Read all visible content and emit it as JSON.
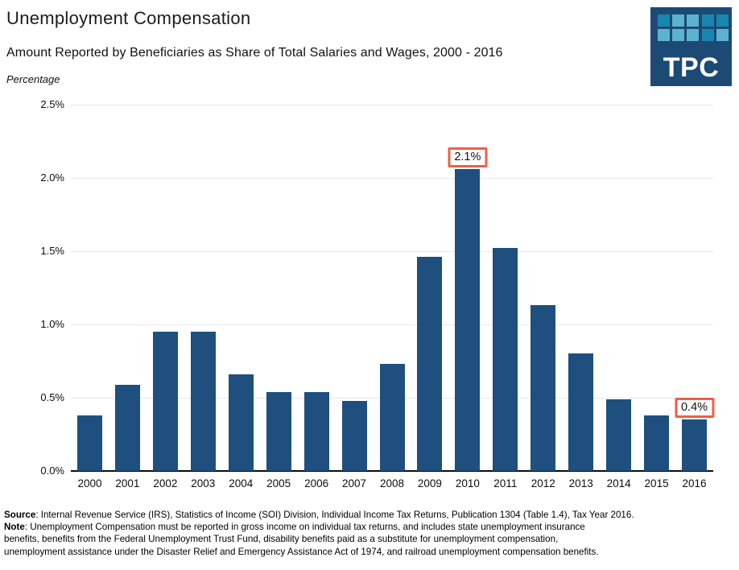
{
  "header": {
    "title": "Unemployment Compensation",
    "subtitle": "Amount Reported by Beneficiaries as Share of Total Salaries and Wages, 2000 - 2016",
    "axis_unit_label": "Percentage"
  },
  "logo": {
    "text": "TPC",
    "bg_color": "#1c4a74",
    "square_colors": [
      "#1886ae",
      "#5db2d0",
      "#5db2d0",
      "#1886ae",
      "#1886ae",
      "#5db2d0",
      "#5db2d0",
      "#5db2d0",
      "#1886ae",
      "#5db2d0"
    ]
  },
  "chart_data": {
    "type": "bar",
    "title": "Unemployment Compensation",
    "subtitle": "Amount Reported by Beneficiaries as Share of Total Salaries and Wages, 2000 - 2016",
    "ylabel": "Percentage",
    "categories": [
      "2000",
      "2001",
      "2002",
      "2003",
      "2004",
      "2005",
      "2006",
      "2007",
      "2008",
      "2009",
      "2010",
      "2011",
      "2012",
      "2013",
      "2014",
      "2015",
      "2016"
    ],
    "values": [
      0.38,
      0.59,
      0.95,
      0.95,
      0.66,
      0.54,
      0.54,
      0.48,
      0.73,
      1.46,
      2.06,
      1.52,
      1.13,
      0.8,
      0.49,
      0.38,
      0.35
    ],
    "ylim": [
      0,
      2.5
    ],
    "ytick_labels": [
      "0.0%",
      "0.5%",
      "1.0%",
      "1.5%",
      "2.0%",
      "2.5%"
    ],
    "grid": true,
    "legend": "none",
    "bar_color": "#1e4f7e",
    "annotation_border_color": "#ee5f48",
    "annotations": [
      {
        "category": "2010",
        "label": "2.1%"
      },
      {
        "category": "2016",
        "label": "0.4%"
      }
    ]
  },
  "footer": {
    "source_label": "Source",
    "source_text": ": Internal Revenue Service (IRS), Statistics of Income (SOI) Division, Individual Income Tax Returns, Publication 1304 (Table 1.4), Tax Year 2016.",
    "note_label": "Note",
    "note_line1": ": Unemployment Compensation must be reported in gross income on individual tax returns, and includes state unemployment insurance",
    "note_line2": "benefits, benefits from the Federal Unemployment Trust Fund, disability benefits paid as a substitute for unemployment compensation,",
    "note_line3": "unemployment assistance under the Disaster Relief and Emergency Assistance Act of 1974, and railroad unemployment compensation benefits."
  }
}
